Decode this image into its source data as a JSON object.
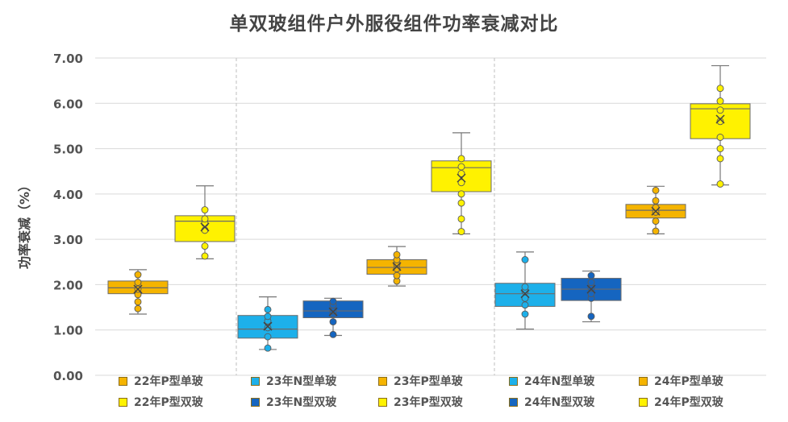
{
  "chart_data": {
    "type": "box",
    "title": "单双玻组件户外服役组件功率衰减对比",
    "ylabel": "功率衰减（%）",
    "xlabel": "",
    "ylim": [
      0,
      7
    ],
    "yticks": [
      "0.00",
      "1.00",
      "2.00",
      "3.00",
      "4.00",
      "5.00",
      "6.00",
      "7.00"
    ],
    "grid": true,
    "legend_position": "bottom",
    "groups": [
      {
        "series": [
          "22年P型单玻",
          "22年P型双玻"
        ]
      },
      {
        "series": [
          "23年N型单玻",
          "23年N型双玻",
          "23年P型单玻",
          "23年P型双玻"
        ]
      },
      {
        "series": [
          "24年N型单玻",
          "24年N型双玻",
          "24年P型单玻",
          "24年P型双玻"
        ]
      }
    ],
    "series": [
      {
        "name": "22年P型单玻",
        "color": "#F5B400",
        "min": 1.35,
        "q1": 1.8,
        "median": 1.93,
        "q3": 2.08,
        "max": 2.33,
        "mean": 1.9,
        "points": [
          1.47,
          1.62,
          1.78,
          1.9,
          2.05,
          2.22
        ]
      },
      {
        "name": "22年P型双玻",
        "color": "#FFF200",
        "min": 2.57,
        "q1": 2.95,
        "median": 3.4,
        "q3": 3.52,
        "max": 4.18,
        "mean": 3.27,
        "points": [
          2.63,
          2.85,
          3.2,
          3.35,
          3.45,
          3.65
        ]
      },
      {
        "name": "23年N型单玻",
        "color": "#1DB0EA",
        "min": 0.57,
        "q1": 0.82,
        "median": 1.02,
        "q3": 1.32,
        "max": 1.73,
        "mean": 1.08,
        "points": [
          0.6,
          0.85,
          1.05,
          1.2,
          1.3,
          1.45
        ]
      },
      {
        "name": "23年N型双玻",
        "color": "#1565C0",
        "min": 0.88,
        "q1": 1.27,
        "median": 1.42,
        "q3": 1.64,
        "max": 1.7,
        "mean": 1.4,
        "points": [
          0.9,
          1.18,
          1.35,
          1.42,
          1.55,
          1.63
        ]
      },
      {
        "name": "23年P型单玻",
        "color": "#F5B400",
        "min": 1.97,
        "q1": 2.23,
        "median": 2.38,
        "q3": 2.55,
        "max": 2.84,
        "mean": 2.4,
        "points": [
          2.08,
          2.2,
          2.35,
          2.45,
          2.55,
          2.66
        ]
      },
      {
        "name": "23年P型双玻",
        "color": "#FFF200",
        "min": 3.12,
        "q1": 4.05,
        "median": 4.58,
        "q3": 4.73,
        "max": 5.35,
        "mean": 4.35,
        "points": [
          3.17,
          3.45,
          3.8,
          4.0,
          4.25,
          4.45,
          4.6,
          4.78
        ]
      },
      {
        "name": "24年N型单玻",
        "color": "#1DB0EA",
        "min": 1.02,
        "q1": 1.52,
        "median": 1.8,
        "q3": 2.03,
        "max": 2.72,
        "mean": 1.8,
        "points": [
          1.35,
          1.55,
          1.7,
          1.85,
          1.95,
          2.55
        ]
      },
      {
        "name": "24年N型双玻",
        "color": "#1565C0",
        "min": 1.18,
        "q1": 1.65,
        "median": 1.9,
        "q3": 2.14,
        "max": 2.3,
        "mean": 1.9,
        "points": [
          1.3,
          1.7,
          1.8,
          1.92,
          2.05,
          2.2
        ]
      },
      {
        "name": "24年P型单玻",
        "color": "#F5B400",
        "min": 3.12,
        "q1": 3.47,
        "median": 3.64,
        "q3": 3.77,
        "max": 4.17,
        "mean": 3.62,
        "points": [
          3.18,
          3.4,
          3.6,
          3.7,
          3.85,
          4.08
        ]
      },
      {
        "name": "24年P型双玻",
        "color": "#FFF200",
        "min": 4.2,
        "q1": 5.22,
        "median": 5.88,
        "q3": 5.99,
        "max": 6.83,
        "mean": 5.65,
        "points": [
          4.22,
          4.78,
          5.0,
          5.25,
          5.6,
          5.85,
          6.05,
          6.33
        ]
      }
    ],
    "legend": [
      {
        "label": "22年P型单玻",
        "color": "#F5B400"
      },
      {
        "label": "23年N型单玻",
        "color": "#1DB0EA"
      },
      {
        "label": "23年P型单玻",
        "color": "#F5B400"
      },
      {
        "label": "24年N型单玻",
        "color": "#1DB0EA"
      },
      {
        "label": "24年P型单玻",
        "color": "#F5B400"
      },
      {
        "label": "22年P型双玻",
        "color": "#FFF200"
      },
      {
        "label": "23年N型双玻",
        "color": "#1565C0"
      },
      {
        "label": "23年P型双玻",
        "color": "#FFF200"
      },
      {
        "label": "24年N型双玻",
        "color": "#1565C0"
      },
      {
        "label": "24年P型双玻",
        "color": "#FFF200"
      }
    ]
  }
}
